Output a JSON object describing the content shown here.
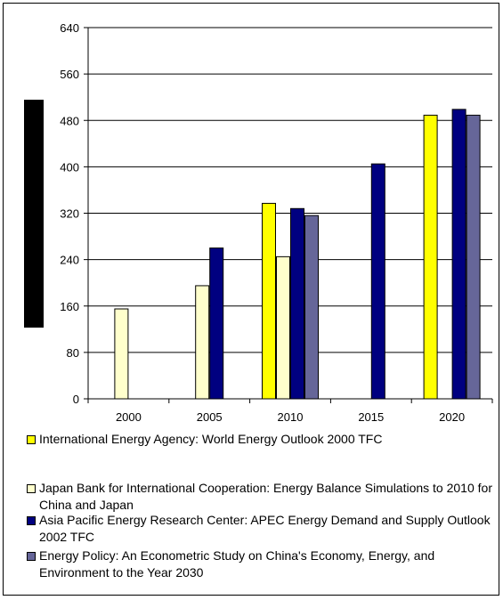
{
  "chart_data": {
    "type": "bar",
    "categories": [
      "2000",
      "2005",
      "2010",
      "2015",
      "2020"
    ],
    "series": [
      {
        "name": "International Energy Agency: World Energy Outlook 2000 TFC",
        "color": "#ffff00",
        "values": [
          null,
          null,
          337,
          null,
          489
        ]
      },
      {
        "name": "Japan Bank for International Cooperation: Energy Balance Simulations to 2010 for China and Japan",
        "color": "#ffffcc",
        "values": [
          155,
          195,
          245,
          null,
          null
        ]
      },
      {
        "name": "Asia Pacific Energy Research Center: APEC Energy Demand and Supply Outlook 2002 TFC",
        "color": "#000080",
        "values": [
          null,
          260,
          328,
          405,
          499
        ]
      },
      {
        "name": "Energy Policy: An Econometric Study on China's Economy, Energy, and Environment to the Year 2030",
        "color": "#666699",
        "values": [
          null,
          null,
          316,
          null,
          489
        ]
      }
    ],
    "yticks": [
      0,
      80,
      160,
      240,
      320,
      400,
      480,
      560,
      640
    ],
    "ylim": [
      0,
      640
    ],
    "title": "",
    "xlabel": "",
    "ylabel": "",
    "grid": true,
    "legend_position": "bottom"
  }
}
